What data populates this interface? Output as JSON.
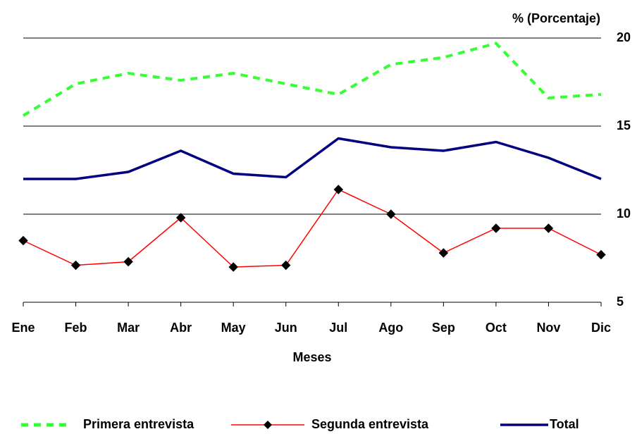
{
  "chart_data": {
    "type": "line",
    "y_label": "% (Porcentaje)",
    "x_label": "Meses",
    "categories": [
      "Ene",
      "Feb",
      "Mar",
      "Abr",
      "May",
      "Jun",
      "Jul",
      "Ago",
      "Sep",
      "Oct",
      "Nov",
      "Dic"
    ],
    "series": [
      {
        "name": "Primera entrevista",
        "color": "#33ff33",
        "style": "dashed",
        "values": [
          15.6,
          17.4,
          18.0,
          17.6,
          18.0,
          17.4,
          16.8,
          18.5,
          18.9,
          19.7,
          16.6,
          16.8
        ]
      },
      {
        "name": "Segunda entrevista",
        "color": "#ff0000",
        "style": "solid",
        "marker": "diamond",
        "values": [
          8.5,
          7.1,
          7.3,
          9.8,
          7.0,
          7.1,
          11.4,
          10.0,
          7.8,
          9.2,
          9.2,
          7.7
        ]
      },
      {
        "name": "Total",
        "color": "#000080",
        "style": "solid",
        "values": [
          12.0,
          12.0,
          12.4,
          13.6,
          12.3,
          12.1,
          14.3,
          13.8,
          13.6,
          14.1,
          13.2,
          12.0
        ]
      }
    ],
    "ylim": [
      5,
      20
    ],
    "yticks": [
      5,
      10,
      15,
      20
    ],
    "y_axis_side": "right",
    "grid": true,
    "legend": "bottom"
  }
}
